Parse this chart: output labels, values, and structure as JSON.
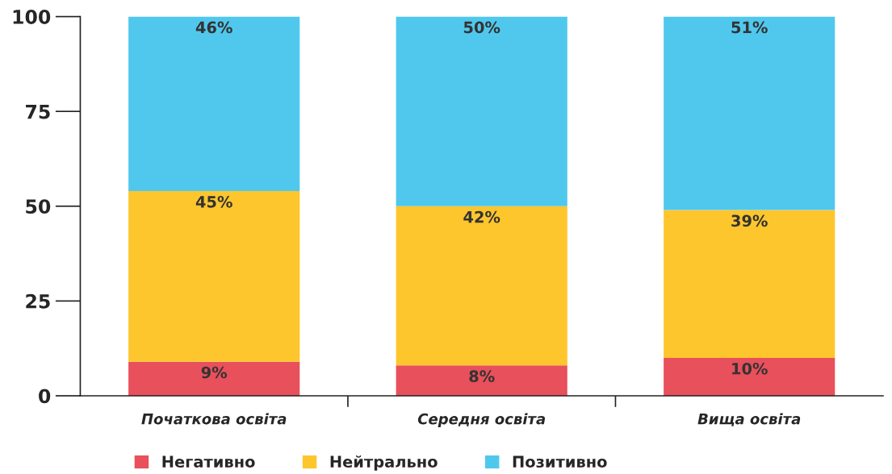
{
  "chart_data": {
    "type": "bar",
    "stacked": true,
    "categories": [
      "Початкова освіта",
      "Середня освіта",
      "Вища освіта"
    ],
    "series": [
      {
        "name": "Негативно",
        "color": "#e8505b",
        "values": [
          9,
          8,
          10
        ],
        "value_labels": [
          "9%",
          "8%",
          "10%"
        ]
      },
      {
        "name": "Нейтрально",
        "color": "#fdc62d",
        "values": [
          45,
          42,
          39
        ],
        "value_labels": [
          "45%",
          "42%",
          "39%"
        ]
      },
      {
        "name": "Позитивно",
        "color": "#50c8ee",
        "values": [
          46,
          50,
          51
        ],
        "value_labels": [
          "46%",
          "50%",
          "51%"
        ]
      }
    ],
    "ylim": [
      0,
      100
    ],
    "yticks": [
      0,
      25,
      50,
      75,
      100
    ],
    "grid": false,
    "legend": "bottom"
  }
}
